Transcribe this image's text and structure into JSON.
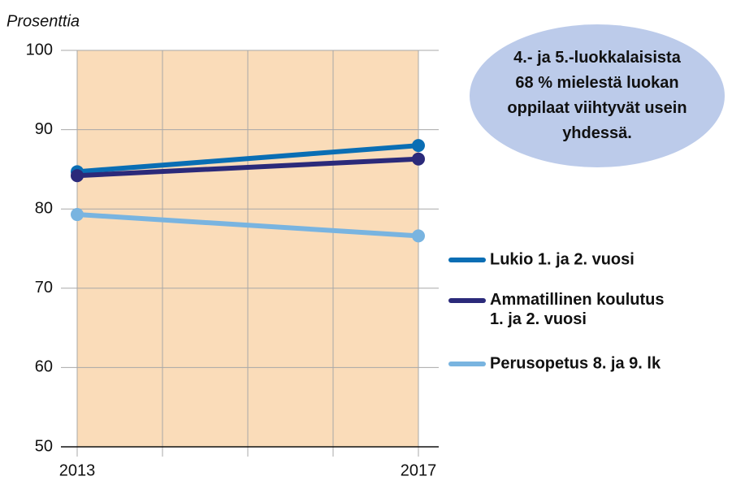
{
  "chart_data": {
    "type": "line",
    "y_label": "Prosenttia",
    "x": [
      2013,
      2017
    ],
    "xlim": [
      2013,
      2017
    ],
    "xticks": [
      2013,
      {
        "value": 2014,
        "label": null
      },
      {
        "value": 2015,
        "label": null
      },
      {
        "value": 2016,
        "label": null
      },
      2017
    ],
    "ylim": [
      50,
      100
    ],
    "yticks": [
      50,
      60,
      70,
      80,
      90,
      100
    ],
    "grid": true,
    "plot_background": "#fadcb9",
    "series": [
      {
        "name": "Lukio 1. ja 2. vuosi",
        "color": "#0a6eb4",
        "values": [
          84.7,
          88.0
        ]
      },
      {
        "name": "Ammatillinen koulutus\n1. ja 2. vuosi",
        "color": "#2b2a7a",
        "values": [
          84.2,
          86.3
        ]
      },
      {
        "name": "Perusopetus 8. ja 9. lk",
        "color": "#79b4e0",
        "values": [
          79.3,
          76.6
        ]
      }
    ],
    "legend": "right",
    "annotation": {
      "color": "#bccbea",
      "lines": [
        [
          "4.- ja 5.-luokkalaisista"
        ],
        [
          "68 %",
          " mielestä luokan"
        ],
        [
          "oppilaat viihtyvät usein"
        ],
        [
          "yhdessä."
        ]
      ]
    }
  }
}
